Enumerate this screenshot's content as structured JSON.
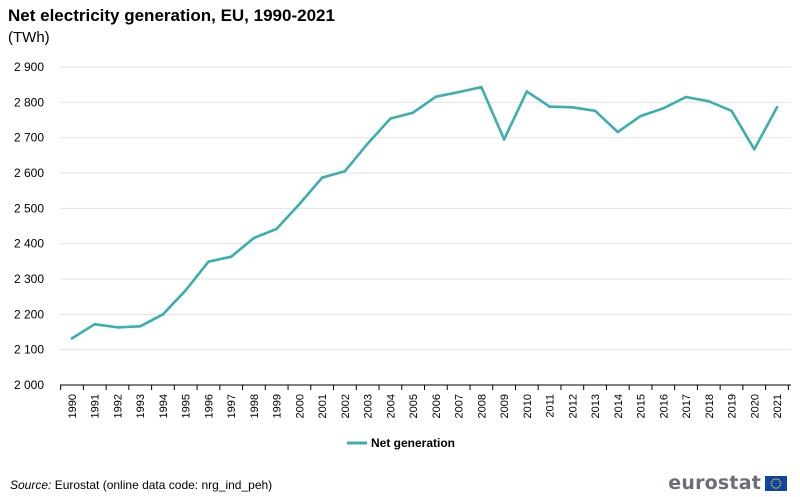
{
  "title": "Net electricity generation, EU, 1990-2021",
  "unit": "(TWh)",
  "source_label": "Source:",
  "source_text": " Eurostat (online data code: nrg_ind_peh)",
  "logo_text": "eurostat",
  "colors": {
    "series": "#3ab0ac",
    "grid": "#e2e2e2",
    "axis": "#000000",
    "logo_text": "#6b6f74",
    "eu_flag_blue": "#0e47a1",
    "eu_flag_stars": "#ffd200"
  },
  "chart_data": {
    "type": "line",
    "title": "Net electricity generation, EU, 1990-2021",
    "subtitle": "(TWh)",
    "xlabel": "",
    "ylabel": "",
    "ylim": [
      2000,
      2900
    ],
    "yticks": [
      2000,
      2100,
      2200,
      2300,
      2400,
      2500,
      2600,
      2700,
      2800,
      2900
    ],
    "ytick_labels": [
      "2 000",
      "2 100",
      "2 200",
      "2 300",
      "2 400",
      "2 500",
      "2 600",
      "2 700",
      "2 800",
      "2 900"
    ],
    "grid": true,
    "legend_position": "bottom-center",
    "categories": [
      "1990",
      "1991",
      "1992",
      "1993",
      "1994",
      "1995",
      "1996",
      "1997",
      "1998",
      "1999",
      "2000",
      "2001",
      "2002",
      "2003",
      "2004",
      "2005",
      "2006",
      "2007",
      "2008",
      "2009",
      "2010",
      "2011",
      "2012",
      "2013",
      "2014",
      "2015",
      "2016",
      "2017",
      "2018",
      "2019",
      "2020",
      "2021"
    ],
    "series": [
      {
        "name": "Net generation",
        "values": [
          2132,
          2172,
          2163,
          2166,
          2200,
          2268,
          2349,
          2363,
          2416,
          2442,
          2512,
          2587,
          2605,
          2683,
          2754,
          2771,
          2816,
          2829,
          2843,
          2695,
          2831,
          2788,
          2786,
          2776,
          2716,
          2761,
          2783,
          2815,
          2803,
          2776,
          2667,
          2786
        ]
      }
    ]
  }
}
